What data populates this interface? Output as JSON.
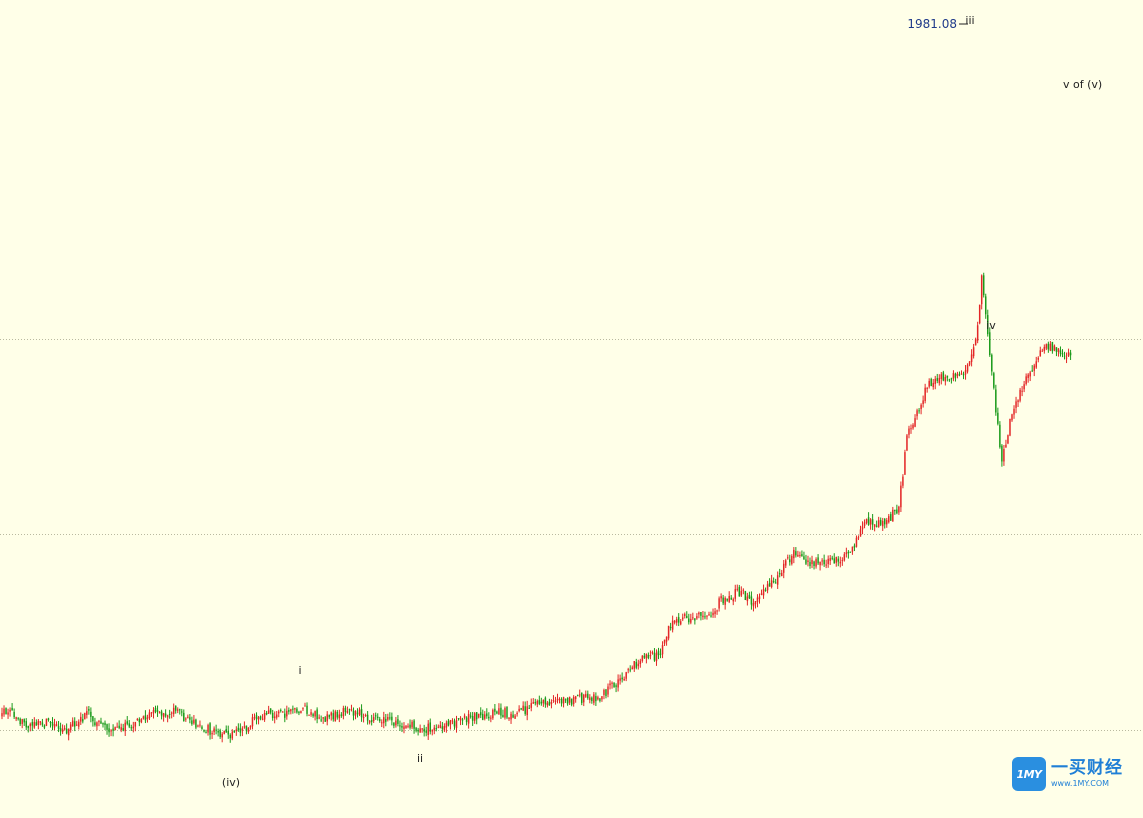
{
  "chart_data": {
    "type": "candlestick",
    "title": "",
    "xlabel": "",
    "ylabel": "",
    "grid": "horizontal-dotted",
    "colors": {
      "up": "#E32626",
      "down": "#1A9A1A",
      "grid": "#B9B9A0",
      "price_label": "#1F3A8A",
      "background": "#FFFFE8"
    },
    "peak_label": "1981.08",
    "wave_labels": [
      {
        "label": "(iv)",
        "bar": 112
      },
      {
        "label": "i",
        "bar": 150
      },
      {
        "label": "ii",
        "bar": 210
      },
      {
        "label": "iii",
        "bar": 485
      },
      {
        "label": "iv",
        "bar": 495
      },
      {
        "label": "v of (v)",
        "bar": 525
      }
    ],
    "path_points": [
      [
        0,
        1580
      ],
      [
        8,
        1570
      ],
      [
        12,
        1561
      ],
      [
        22,
        1566
      ],
      [
        32,
        1560
      ],
      [
        42,
        1575
      ],
      [
        50,
        1561
      ],
      [
        62,
        1564
      ],
      [
        72,
        1574
      ],
      [
        84,
        1577
      ],
      [
        92,
        1571
      ],
      [
        100,
        1561
      ],
      [
        106,
        1559
      ],
      [
        112,
        1556
      ],
      [
        120,
        1562
      ],
      [
        128,
        1573
      ],
      [
        140,
        1575
      ],
      [
        150,
        1579
      ],
      [
        158,
        1570
      ],
      [
        168,
        1576
      ],
      [
        176,
        1576
      ],
      [
        186,
        1570
      ],
      [
        196,
        1566
      ],
      [
        203,
        1566
      ],
      [
        206,
        1561
      ],
      [
        210,
        1561
      ],
      [
        220,
        1565
      ],
      [
        234,
        1572
      ],
      [
        246,
        1576
      ],
      [
        254,
        1575
      ],
      [
        262,
        1581
      ],
      [
        272,
        1586
      ],
      [
        284,
        1588
      ],
      [
        296,
        1591
      ],
      [
        304,
        1603
      ],
      [
        312,
        1618
      ],
      [
        318,
        1627
      ],
      [
        326,
        1628
      ],
      [
        331,
        1658
      ],
      [
        340,
        1663
      ],
      [
        350,
        1664
      ],
      [
        356,
        1679
      ],
      [
        366,
        1688
      ],
      [
        372,
        1675
      ],
      [
        382,
        1697
      ],
      [
        392,
        1722
      ],
      [
        398,
        1713
      ],
      [
        410,
        1716
      ],
      [
        420,
        1721
      ],
      [
        428,
        1751
      ],
      [
        438,
        1752
      ],
      [
        444,
        1764
      ],
      [
        448,
        1829
      ],
      [
        458,
        1875
      ],
      [
        466,
        1883
      ],
      [
        474,
        1884
      ],
      [
        478,
        1896
      ],
      [
        483,
        1928
      ],
      [
        485,
        1980
      ],
      [
        490,
        1889
      ],
      [
        495,
        1805
      ],
      [
        500,
        1854
      ],
      [
        507,
        1883
      ],
      [
        516,
        1913
      ],
      [
        525,
        1906
      ]
    ],
    "notes": "Daily price series with Elliott wave count (iv)-i-ii-iii-iv-v; values read from the price axis scale implied by the peak label"
  },
  "watermark": {
    "badge": "1MY",
    "name": "一买财经",
    "url": "www.1MY.COM"
  }
}
